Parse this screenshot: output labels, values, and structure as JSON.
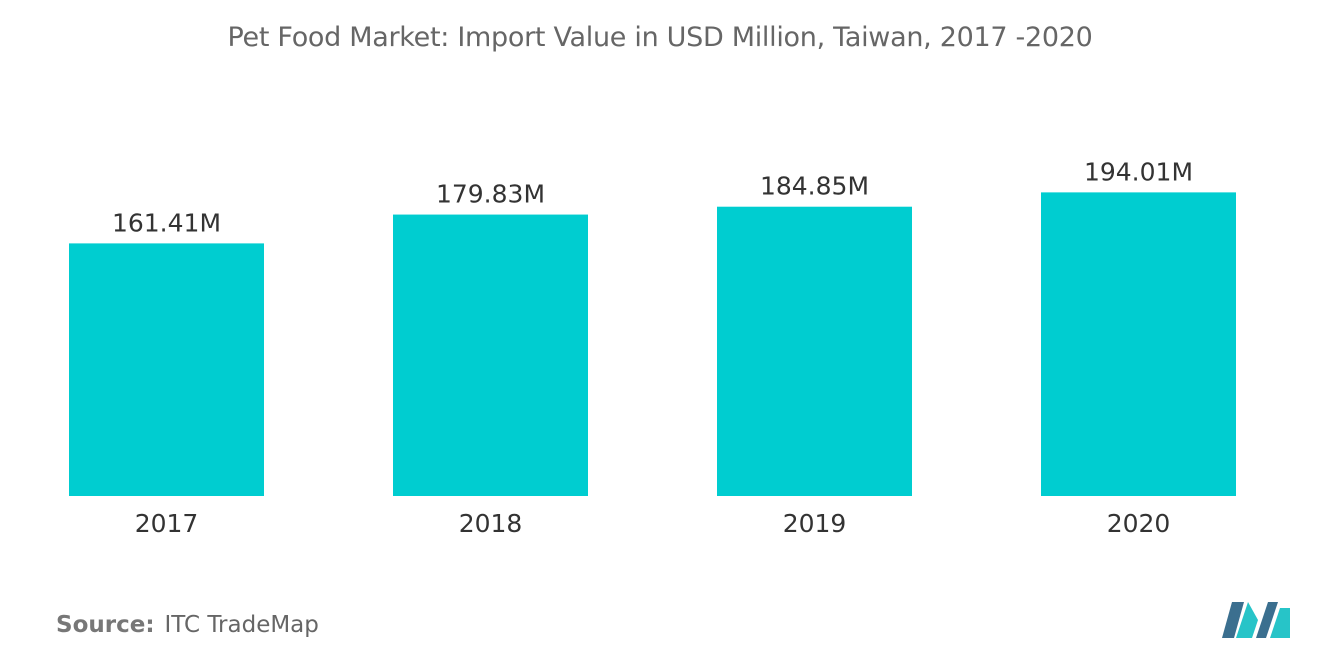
{
  "title": "Pet Food Market: Import Value in USD Million,  Taiwan, 2017 -2020",
  "source": {
    "label": "Source:",
    "text": "ITC TradeMap"
  },
  "colors": {
    "bar": "#00CDD0",
    "text": "#333333",
    "baseline": "#dddddd",
    "logo_dark": "#3b6f8f",
    "logo_light": "#27c4c8"
  },
  "logo": {
    "icon": "mordor-intelligence-logo-icon"
  },
  "chart_data": {
    "type": "bar",
    "title": "Pet Food Market: Import Value in USD Million,  Taiwan, 2017 -2020",
    "categories": [
      "2017",
      "2018",
      "2019",
      "2020"
    ],
    "values": [
      161.41,
      179.83,
      184.85,
      194.01
    ],
    "data_labels": [
      "161.41M",
      "179.83M",
      "184.85M",
      "194.01M"
    ],
    "xlabel": "",
    "ylabel": "",
    "grid": false,
    "legend": "none"
  }
}
